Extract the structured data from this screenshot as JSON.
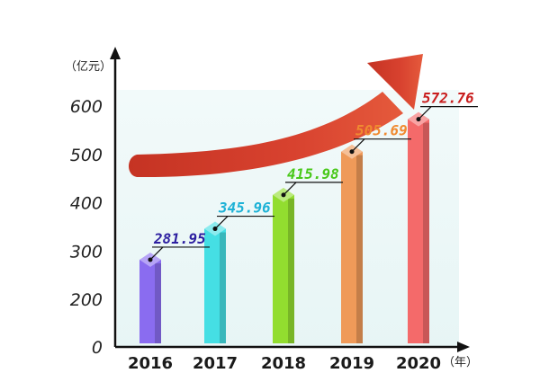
{
  "chart_data": {
    "type": "bar",
    "categories": [
      "2016",
      "2017",
      "2018",
      "2019",
      "2020"
    ],
    "series": [
      {
        "values": [
          281.95,
          345.96,
          415.98,
          505.69,
          572.76
        ]
      }
    ],
    "value_labels": [
      "281.95",
      "345.96",
      "415.98",
      "505.69",
      "572.76"
    ],
    "yticks": [
      "0",
      "200",
      "300",
      "400",
      "500",
      "600"
    ],
    "y_unit": "（亿元）",
    "x_unit": "（年）",
    "ylim": [
      0,
      640
    ],
    "grid": false,
    "bar_colors": [
      "#8a6cf0",
      "#45dfe4",
      "#92dd2f",
      "#ef9a59",
      "#f46a6a"
    ],
    "label_colors": [
      "#2d1fa0",
      "#1eb2d6",
      "#49c81a",
      "#f08a30",
      "#c91f1f"
    ],
    "trend_arrow_color": "#d5402e",
    "background_band_color": "#eef8f8"
  }
}
